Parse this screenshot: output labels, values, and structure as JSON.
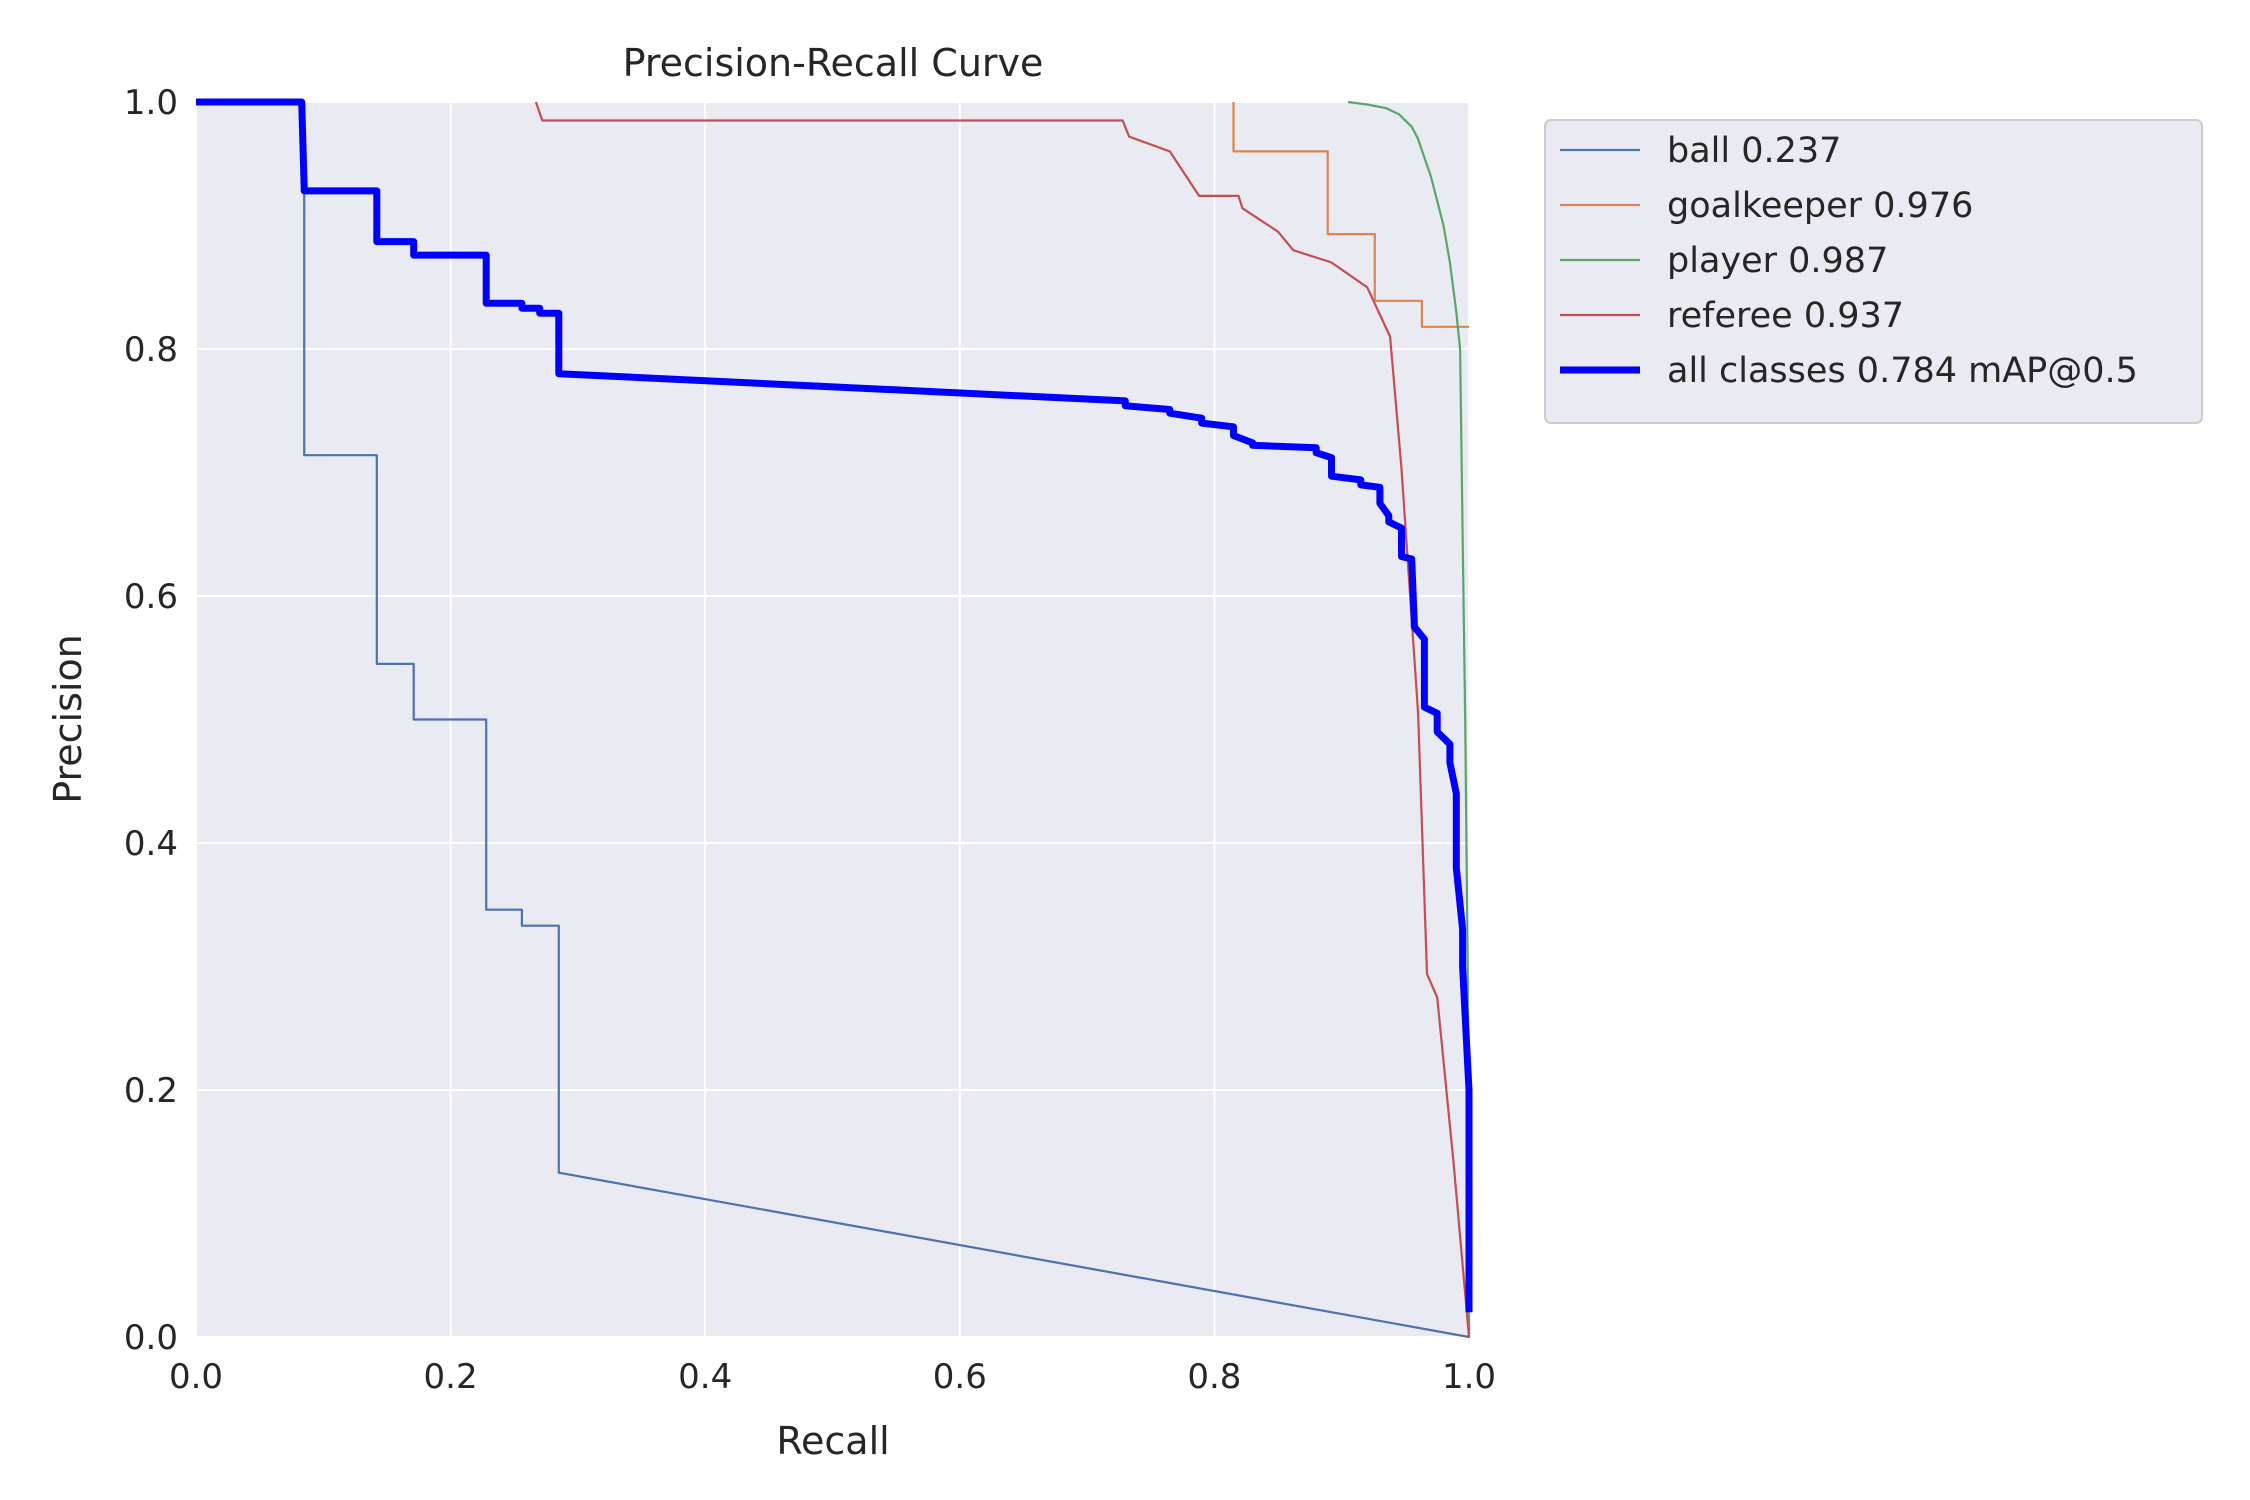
{
  "chart_data": {
    "type": "line",
    "title": "Precision-Recall Curve",
    "xlabel": "Recall",
    "ylabel": "Precision",
    "xlim": [
      0,
      1
    ],
    "ylim": [
      0,
      1
    ],
    "xticks": [
      "0.0",
      "0.2",
      "0.4",
      "0.6",
      "0.8",
      "1.0"
    ],
    "yticks": [
      "0.0",
      "0.2",
      "0.4",
      "0.6",
      "0.8",
      "1.0"
    ],
    "grid": true,
    "legend_position": "outside-top-right",
    "background_color": "#eaeaf2",
    "grid_color": "#ffffff",
    "series": [
      {
        "name": "ball 0.237",
        "color": "#4c72b0",
        "width": "thin",
        "x": [
          0,
          0.085,
          0.085,
          0.142,
          0.142,
          0.171,
          0.171,
          0.228,
          0.228,
          0.256,
          0.256,
          0.285,
          0.285,
          1.0,
          1.0
        ],
        "y": [
          1.0,
          1.0,
          0.714,
          0.714,
          0.545,
          0.545,
          0.5,
          0.5,
          0.346,
          0.346,
          0.333,
          0.333,
          0.133,
          0.0,
          0.04
        ]
      },
      {
        "name": "goalkeeper 0.976",
        "color": "#dd8452",
        "width": "thin",
        "x": [
          0.815,
          0.815,
          0.889,
          0.889,
          0.926,
          0.926,
          0.963,
          0.963,
          1.0
        ],
        "y": [
          1.0,
          0.96,
          0.96,
          0.893,
          0.893,
          0.839,
          0.839,
          0.818,
          0.818
        ]
      },
      {
        "name": "player 0.987",
        "color": "#55a868",
        "width": "thin",
        "x": [
          0.905,
          0.92,
          0.935,
          0.945,
          0.955,
          0.96,
          0.965,
          0.97,
          0.975,
          0.98,
          0.985,
          0.99,
          0.993,
          0.995,
          0.997,
          0.999,
          1.0
        ],
        "y": [
          1.0,
          0.998,
          0.995,
          0.99,
          0.98,
          0.97,
          0.955,
          0.94,
          0.92,
          0.9,
          0.87,
          0.83,
          0.8,
          0.65,
          0.5,
          0.3,
          0.0
        ]
      },
      {
        "name": "referee 0.937",
        "color": "#c44e52",
        "width": "thin",
        "x": [
          0.267,
          0.272,
          0.272,
          0.728,
          0.733,
          0.733,
          0.765,
          0.765,
          0.788,
          0.788,
          0.819,
          0.822,
          0.822,
          0.85,
          0.85,
          0.862,
          0.862,
          0.892,
          0.892,
          0.92,
          0.92,
          0.938,
          0.938,
          0.947,
          0.947,
          0.96,
          0.96,
          0.967,
          0.967,
          0.975,
          0.975,
          0.988,
          0.988,
          1.0
        ],
        "y": [
          1.0,
          0.985,
          0.985,
          0.985,
          0.972,
          0.972,
          0.96,
          0.96,
          0.924,
          0.924,
          0.924,
          0.914,
          0.914,
          0.895,
          0.895,
          0.88,
          0.88,
          0.87,
          0.87,
          0.85,
          0.85,
          0.81,
          0.81,
          0.703,
          0.703,
          0.505,
          0.505,
          0.294,
          0.294,
          0.275,
          0.275,
          0.14,
          0.14,
          0.0
        ]
      },
      {
        "name": "all classes 0.784 mAP@0.5",
        "color": "#0000ff",
        "width": "thick",
        "x": [
          0,
          0.083,
          0.085,
          0.085,
          0.142,
          0.142,
          0.171,
          0.171,
          0.228,
          0.228,
          0.256,
          0.256,
          0.27,
          0.27,
          0.285,
          0.285,
          0.73,
          0.73,
          0.765,
          0.765,
          0.79,
          0.79,
          0.815,
          0.815,
          0.83,
          0.83,
          0.88,
          0.88,
          0.892,
          0.892,
          0.915,
          0.915,
          0.93,
          0.93,
          0.937,
          0.937,
          0.947,
          0.947,
          0.955,
          0.957,
          0.957,
          0.965,
          0.965,
          0.975,
          0.975,
          0.985,
          0.985,
          0.99,
          0.99,
          0.995,
          0.995,
          1.0,
          1.0
        ],
        "y": [
          1.0,
          1.0,
          0.93,
          0.928,
          0.928,
          0.887,
          0.887,
          0.876,
          0.876,
          0.837,
          0.837,
          0.833,
          0.833,
          0.829,
          0.829,
          0.78,
          0.758,
          0.754,
          0.751,
          0.748,
          0.744,
          0.74,
          0.737,
          0.73,
          0.724,
          0.722,
          0.72,
          0.716,
          0.712,
          0.697,
          0.694,
          0.69,
          0.688,
          0.675,
          0.665,
          0.66,
          0.655,
          0.632,
          0.63,
          0.578,
          0.575,
          0.565,
          0.51,
          0.505,
          0.49,
          0.48,
          0.465,
          0.44,
          0.38,
          0.33,
          0.3,
          0.2,
          0.02
        ]
      }
    ]
  }
}
